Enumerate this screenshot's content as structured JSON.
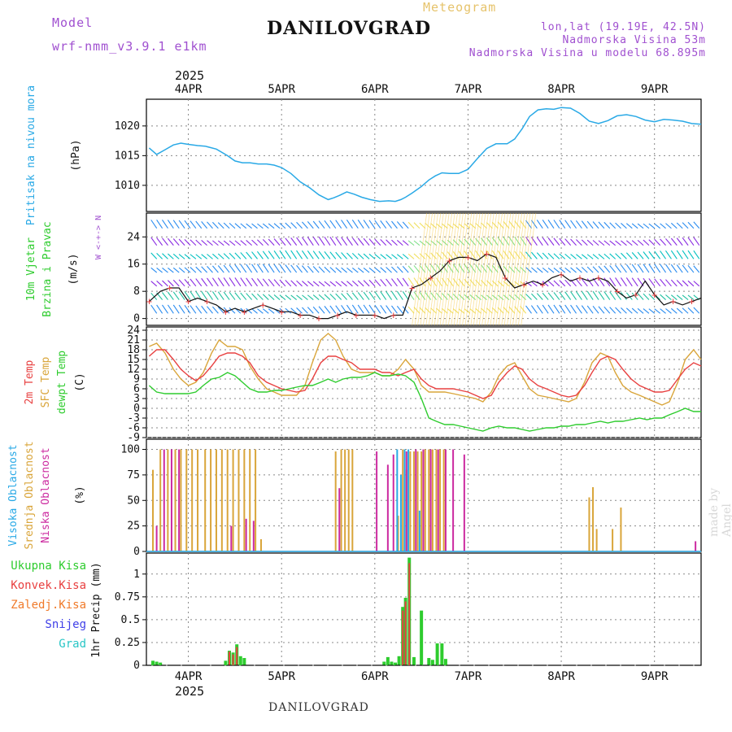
{
  "header": {
    "model_label": "Model",
    "model_version": "wrf-nmm_v3.9.1 e1km",
    "title": "DANILOVGRAD",
    "meteogram": "Meteogram",
    "lonlat": "lon,lat (19.19E, 42.5N)",
    "altitude": "Nadmorska Visina 53m",
    "model_altitude": "Nadmorska Visina u modelu 68.895m"
  },
  "footer": {
    "name": "DANILOVGRAD",
    "credit": "made by Angel",
    "year": "2025"
  },
  "colors": {
    "pressure": "#29a9e6",
    "temp2m": "#e84040",
    "sfc_temp": "#d9a53a",
    "dewpt": "#2ecc2e",
    "cloud_high": "#29a9e6",
    "cloud_mid": "#d9a53a",
    "cloud_low": "#cc2aa0",
    "precip_total": "#2ecc2e",
    "precip_conv": "#e84040",
    "grid": "#888888"
  },
  "chart_data": [
    {
      "type": "line",
      "title": "",
      "ylabel_main": "Pritisak na nivou mora",
      "ylabel_unit": "(hPa)",
      "x_ticks": [
        "4APR",
        "5APR",
        "6APR",
        "7APR",
        "8APR",
        "9APR"
      ],
      "x_top_year": "2025",
      "ylim": [
        1005.6,
        1024.5
      ],
      "yticks": [
        1010,
        1015,
        1020
      ],
      "series": [
        {
          "key": "pressure",
          "x": [
            3.58,
            3.66,
            3.75,
            3.84,
            3.92,
            4.0,
            4.1,
            4.18,
            4.3,
            4.42,
            4.5,
            4.58,
            4.66,
            4.75,
            4.84,
            4.92,
            5.0,
            5.1,
            5.2,
            5.3,
            5.4,
            5.5,
            5.56,
            5.62,
            5.7,
            5.78,
            5.86,
            5.95,
            6.05,
            6.15,
            6.22,
            6.28,
            6.33,
            6.4,
            6.5,
            6.58,
            6.65,
            6.72,
            6.8,
            6.9,
            7.0,
            7.1,
            7.2,
            7.3,
            7.42,
            7.5,
            7.58,
            7.66,
            7.75,
            7.84,
            7.92,
            8.0,
            8.1,
            8.2,
            8.3,
            8.4,
            8.5,
            8.6,
            8.7,
            8.8,
            8.9,
            9.0,
            9.1,
            9.2,
            9.3,
            9.4,
            9.5
          ],
          "values": [
            1016.3,
            1015.2,
            1016.0,
            1016.8,
            1017.1,
            1016.9,
            1016.7,
            1016.6,
            1016.1,
            1015.0,
            1014.1,
            1013.8,
            1013.8,
            1013.6,
            1013.6,
            1013.4,
            1013.0,
            1012.0,
            1010.6,
            1009.6,
            1008.4,
            1007.6,
            1007.9,
            1008.3,
            1008.9,
            1008.5,
            1008.0,
            1007.6,
            1007.3,
            1007.4,
            1007.3,
            1007.6,
            1008.0,
            1008.7,
            1009.8,
            1010.9,
            1011.6,
            1012.1,
            1012.0,
            1012.0,
            1012.7,
            1014.5,
            1016.2,
            1017.0,
            1017.0,
            1017.8,
            1019.5,
            1021.6,
            1022.7,
            1022.9,
            1022.8,
            1023.1,
            1023.0,
            1022.1,
            1020.8,
            1020.4,
            1020.9,
            1021.7,
            1021.9,
            1021.6,
            1021.0,
            1020.7,
            1021.1,
            1021.0,
            1020.8,
            1020.4,
            1020.3
          ]
        }
      ]
    },
    {
      "type": "line",
      "title": "",
      "ylabel_main": "10m Vjetar",
      "ylabel_sub": "Brzina i Pravac",
      "ylabel_unit": "(m/s)",
      "compass": "W <-+-> N",
      "ylim": [
        -2,
        31
      ],
      "yticks": [
        0,
        8,
        16,
        24
      ],
      "series": [
        {
          "key": "wind_speed",
          "x": [
            3.58,
            3.7,
            3.8,
            3.9,
            4.0,
            4.1,
            4.2,
            4.3,
            4.4,
            4.5,
            4.6,
            4.7,
            4.8,
            4.9,
            5.0,
            5.1,
            5.2,
            5.3,
            5.4,
            5.5,
            5.6,
            5.7,
            5.8,
            5.9,
            6.0,
            6.1,
            6.2,
            6.3,
            6.4,
            6.5,
            6.6,
            6.7,
            6.8,
            6.9,
            7.0,
            7.1,
            7.2,
            7.3,
            7.4,
            7.5,
            7.6,
            7.7,
            7.8,
            7.9,
            8.0,
            8.1,
            8.2,
            8.3,
            8.4,
            8.5,
            8.6,
            8.7,
            8.8,
            8.9,
            9.0,
            9.1,
            9.2,
            9.3,
            9.4,
            9.5
          ],
          "values": [
            5,
            8,
            9,
            9,
            5,
            6,
            5,
            4,
            2,
            3,
            2,
            3,
            4,
            3,
            2,
            2,
            1,
            1,
            0,
            0,
            1,
            2,
            1,
            1,
            1,
            0,
            1,
            1,
            9,
            10,
            12,
            14,
            17,
            18,
            18,
            17,
            19,
            18,
            12,
            9,
            10,
            11,
            10,
            12,
            13,
            11,
            12,
            11,
            12,
            11,
            8,
            6,
            7,
            11,
            7,
            4,
            5,
            4,
            5,
            6
          ]
        }
      ]
    },
    {
      "type": "line",
      "title": "",
      "ylabel_unit": "(C)",
      "legend": [
        "2m Temp",
        "SFC Temp",
        "dewpt Temp"
      ],
      "ylim": [
        -9,
        25
      ],
      "yticks": [
        -9,
        -6,
        -3,
        0,
        3,
        6,
        9,
        12,
        15,
        18,
        21,
        24
      ],
      "series": [
        {
          "name": "2m Temp",
          "key": "temp2m",
          "x": [
            3.58,
            3.66,
            3.75,
            3.84,
            3.92,
            4.0,
            4.08,
            4.16,
            4.25,
            4.33,
            4.42,
            4.5,
            4.58,
            4.66,
            4.75,
            4.84,
            4.92,
            5.0,
            5.08,
            5.16,
            5.25,
            5.33,
            5.42,
            5.5,
            5.58,
            5.66,
            5.75,
            5.84,
            5.92,
            6.0,
            6.08,
            6.16,
            6.25,
            6.33,
            6.42,
            6.5,
            6.58,
            6.66,
            6.75,
            6.84,
            6.92,
            7.0,
            7.08,
            7.16,
            7.25,
            7.33,
            7.42,
            7.5,
            7.58,
            7.66,
            7.75,
            7.84,
            7.92,
            8.0,
            8.08,
            8.16,
            8.25,
            8.33,
            8.42,
            8.5,
            8.58,
            8.66,
            8.75,
            8.84,
            8.92,
            9.0,
            9.08,
            9.16,
            9.25,
            9.33,
            9.42,
            9.5
          ],
          "values": [
            16,
            18,
            18,
            15,
            12,
            10,
            8.5,
            10,
            13,
            16,
            17,
            17,
            16,
            14,
            10,
            8,
            7,
            6,
            5.5,
            5,
            5.5,
            9,
            14,
            16,
            16,
            15,
            14,
            12,
            12,
            12,
            11,
            11,
            10,
            11,
            12,
            9,
            7,
            6,
            6,
            6,
            5.5,
            5,
            4,
            3,
            4,
            8,
            11,
            13,
            12,
            9,
            7,
            6,
            5,
            4,
            3.5,
            4,
            7,
            11,
            15,
            16,
            15,
            12,
            9,
            7,
            6,
            5,
            5,
            5.5,
            9,
            12,
            14,
            13
          ]
        },
        {
          "name": "SFC Temp",
          "key": "sfc_temp",
          "x": [
            3.58,
            3.66,
            3.75,
            3.84,
            3.92,
            4.0,
            4.08,
            4.16,
            4.25,
            4.33,
            4.42,
            4.5,
            4.58,
            4.66,
            4.75,
            4.84,
            4.92,
            5.0,
            5.08,
            5.16,
            5.25,
            5.33,
            5.42,
            5.5,
            5.58,
            5.66,
            5.75,
            5.84,
            5.92,
            6.0,
            6.08,
            6.16,
            6.25,
            6.33,
            6.42,
            6.5,
            6.58,
            6.66,
            6.75,
            6.84,
            6.92,
            7.0,
            7.08,
            7.16,
            7.25,
            7.33,
            7.42,
            7.5,
            7.58,
            7.66,
            7.75,
            7.84,
            7.92,
            8.0,
            8.08,
            8.16,
            8.25,
            8.33,
            8.42,
            8.5,
            8.58,
            8.66,
            8.75,
            8.84,
            8.92,
            9.0,
            9.08,
            9.16,
            9.25,
            9.33,
            9.42,
            9.5
          ],
          "values": [
            19,
            20,
            17,
            12,
            9,
            7,
            8,
            11,
            17,
            21,
            19,
            19,
            18,
            13,
            9,
            6,
            5,
            4,
            4,
            4,
            7,
            14,
            21,
            23,
            21,
            16,
            12,
            11,
            11,
            11,
            10,
            10,
            12,
            15,
            12,
            7,
            5,
            5,
            5,
            4.5,
            4,
            3.5,
            3,
            2,
            5,
            10,
            13,
            14,
            10,
            6,
            4,
            3.5,
            3,
            2.5,
            2,
            3,
            8,
            14,
            17,
            16,
            11,
            7,
            5,
            4,
            3,
            2,
            1,
            2,
            8,
            15,
            18,
            15
          ]
        },
        {
          "name": "dewpt Temp",
          "key": "dewpt",
          "x": [
            3.58,
            3.66,
            3.75,
            3.84,
            3.92,
            4.0,
            4.08,
            4.16,
            4.25,
            4.33,
            4.42,
            4.5,
            4.58,
            4.66,
            4.75,
            4.84,
            4.92,
            5.0,
            5.08,
            5.16,
            5.25,
            5.33,
            5.42,
            5.5,
            5.58,
            5.66,
            5.75,
            5.84,
            5.92,
            6.0,
            6.08,
            6.16,
            6.25,
            6.33,
            6.42,
            6.5,
            6.58,
            6.66,
            6.75,
            6.84,
            6.92,
            7.0,
            7.08,
            7.16,
            7.25,
            7.33,
            7.42,
            7.5,
            7.58,
            7.66,
            7.75,
            7.84,
            7.92,
            8.0,
            8.08,
            8.16,
            8.25,
            8.33,
            8.42,
            8.5,
            8.58,
            8.66,
            8.75,
            8.84,
            8.92,
            9.0,
            9.08,
            9.16,
            9.25,
            9.33,
            9.42,
            9.5
          ],
          "values": [
            7,
            5,
            4.5,
            4.5,
            4.5,
            4.5,
            5,
            7,
            9,
            9.5,
            11,
            10,
            8,
            6,
            5,
            5,
            5.5,
            5.5,
            6,
            6.5,
            7,
            7,
            8,
            9,
            8,
            9,
            9.5,
            9.5,
            10,
            11,
            10,
            10,
            10.5,
            10,
            8,
            3,
            -3,
            -4,
            -5,
            -5,
            -5.5,
            -6,
            -6.5,
            -7,
            -6,
            -5.5,
            -6,
            -6,
            -6.5,
            -7,
            -6.5,
            -6,
            -6,
            -5.5,
            -5.5,
            -5,
            -5,
            -4.5,
            -4,
            -4.5,
            -4,
            -4,
            -3.5,
            -3,
            -3.5,
            -3,
            -3,
            -2,
            -1,
            0,
            -1,
            -1
          ]
        }
      ]
    },
    {
      "type": "bar",
      "title": "",
      "ylabel_unit": "(%)",
      "legend": [
        "Visoka Oblacnost",
        "Srednja Oblacnost",
        "Niska Oblacnost"
      ],
      "ylim": [
        0,
        110
      ],
      "yticks": [
        0,
        25,
        50,
        75,
        100
      ],
      "series": [
        {
          "name": "Srednja Oblacnost",
          "key": "cloud_mid",
          "x": [
            3.62,
            3.7,
            3.78,
            3.86,
            3.92,
            3.98,
            4.04,
            4.1,
            4.18,
            4.24,
            4.3,
            4.36,
            4.42,
            4.48,
            4.54,
            4.6,
            4.66,
            4.72,
            4.78,
            5.58,
            5.64,
            5.68,
            5.72,
            5.76,
            6.25,
            6.3,
            6.34,
            6.38,
            6.42,
            6.46,
            6.5,
            6.54,
            6.58,
            6.62,
            6.66,
            6.7,
            6.74,
            8.3,
            8.34,
            8.38,
            8.55,
            8.64
          ],
          "values": [
            80,
            100,
            100,
            100,
            100,
            100,
            100,
            100,
            100,
            100,
            100,
            100,
            100,
            100,
            100,
            100,
            100,
            100,
            12,
            98,
            100,
            100,
            100,
            100,
            35,
            100,
            80,
            98,
            98,
            98,
            98,
            100,
            100,
            100,
            100,
            100,
            100,
            53,
            63,
            22,
            22,
            43
          ]
        },
        {
          "name": "Niska Oblacnost",
          "key": "cloud_low",
          "x": [
            3.66,
            3.74,
            3.82,
            3.9,
            4.46,
            4.62,
            4.7,
            5.62,
            6.02,
            6.14,
            6.2,
            6.34,
            6.44,
            6.52,
            6.6,
            6.68,
            6.76,
            6.84,
            6.96,
            9.44
          ],
          "values": [
            25,
            100,
            100,
            100,
            25,
            32,
            30,
            62,
            98,
            85,
            95,
            98,
            100,
            100,
            100,
            100,
            100,
            100,
            95,
            10
          ]
        },
        {
          "name": "Visoka Oblacnost",
          "key": "cloud_high",
          "x": [
            6.24,
            6.28,
            6.32,
            6.36,
            6.48
          ],
          "values": [
            100,
            75,
            100,
            100,
            40
          ]
        }
      ]
    },
    {
      "type": "bar",
      "title": "",
      "ylabel_unit": "1hr Precip (mm)",
      "legend": [
        "Ukupna Kisa",
        "Konvek.Kisa",
        "Zaledj.Kisa",
        "Snijeg",
        "Grad"
      ],
      "ylim": [
        0,
        1.23
      ],
      "yticks": [
        0,
        0.25,
        0.5,
        0.75,
        1
      ],
      "ytick_labels": [
        "0",
        "0.25",
        "0.5",
        "0.75",
        "1"
      ],
      "series": [
        {
          "name": "Ukupna Kisa",
          "key": "precip_total",
          "x": [
            3.62,
            3.66,
            3.7,
            4.4,
            4.44,
            4.48,
            4.52,
            4.56,
            4.6,
            6.1,
            6.14,
            6.18,
            6.22,
            6.26,
            6.3,
            6.33,
            6.37,
            6.42,
            6.5,
            6.58,
            6.62,
            6.67,
            6.72,
            6.76
          ],
          "values": [
            0.05,
            0.04,
            0.03,
            0.05,
            0.16,
            0.14,
            0.23,
            0.1,
            0.08,
            0.04,
            0.09,
            0.04,
            0.03,
            0.1,
            0.64,
            0.74,
            1.18,
            0.09,
            0.6,
            0.08,
            0.06,
            0.24,
            0.24,
            0.07
          ]
        },
        {
          "name": "Konvek.Kisa",
          "key": "precip_conv",
          "x": [
            4.44,
            4.48,
            4.52,
            6.3,
            6.33,
            6.37
          ],
          "values": [
            0.15,
            0.12,
            0.2,
            0.6,
            0.7,
            1.12
          ]
        }
      ]
    }
  ]
}
